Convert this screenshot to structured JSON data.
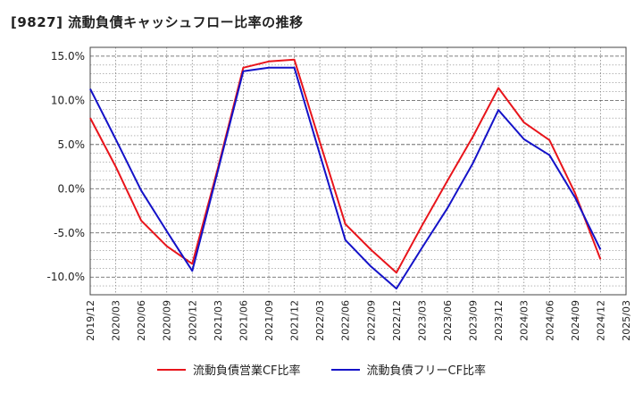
{
  "title": "[9827]  流動負債キャッシュフロー比率の推移",
  "colors": {
    "series1": "#e8141b",
    "series2": "#1412c8",
    "grid": "#8a8a8a"
  },
  "chart_data": {
    "type": "line",
    "title": "[9827]  流動負債キャッシュフロー比率の推移",
    "xlabel": "",
    "ylabel": "",
    "x": [
      "2019/12",
      "2020/03",
      "2020/06",
      "2020/09",
      "2020/12",
      "2021/03",
      "2021/06",
      "2021/09",
      "2021/12",
      "2022/03",
      "2022/06",
      "2022/09",
      "2022/12",
      "2023/03",
      "2023/06",
      "2023/09",
      "2023/12",
      "2024/03",
      "2024/06",
      "2024/09",
      "2024/12",
      "2025/03"
    ],
    "ytick_labels": [
      "15.0%",
      "10.0%",
      "5.0%",
      "0.0%",
      "-5.0%",
      "-10.0%"
    ],
    "yticks": [
      15,
      10,
      5,
      0,
      -5,
      -10
    ],
    "ylim": [
      -12,
      16
    ],
    "grid": true,
    "legend_position": "bottom",
    "series": [
      {
        "name": "流動負債営業CF比率",
        "color": "#e8141b",
        "values": [
          8.0,
          2.5,
          -3.6,
          -6.5,
          -8.5,
          2.3,
          13.7,
          14.4,
          14.6,
          5.3,
          -4.0,
          -6.9,
          -9.5,
          -4.2,
          0.9,
          5.9,
          11.4,
          7.5,
          5.5,
          -0.5,
          -8.0,
          null
        ]
      },
      {
        "name": "流動負債フリーCF比率",
        "color": "#1412c8",
        "values": [
          11.3,
          5.6,
          -0.2,
          -4.8,
          -9.3,
          2.0,
          13.3,
          13.7,
          13.7,
          3.9,
          -5.8,
          -8.8,
          -11.3,
          -6.7,
          -2.2,
          2.9,
          8.9,
          5.6,
          3.8,
          -1.0,
          -6.9,
          null
        ]
      }
    ]
  }
}
